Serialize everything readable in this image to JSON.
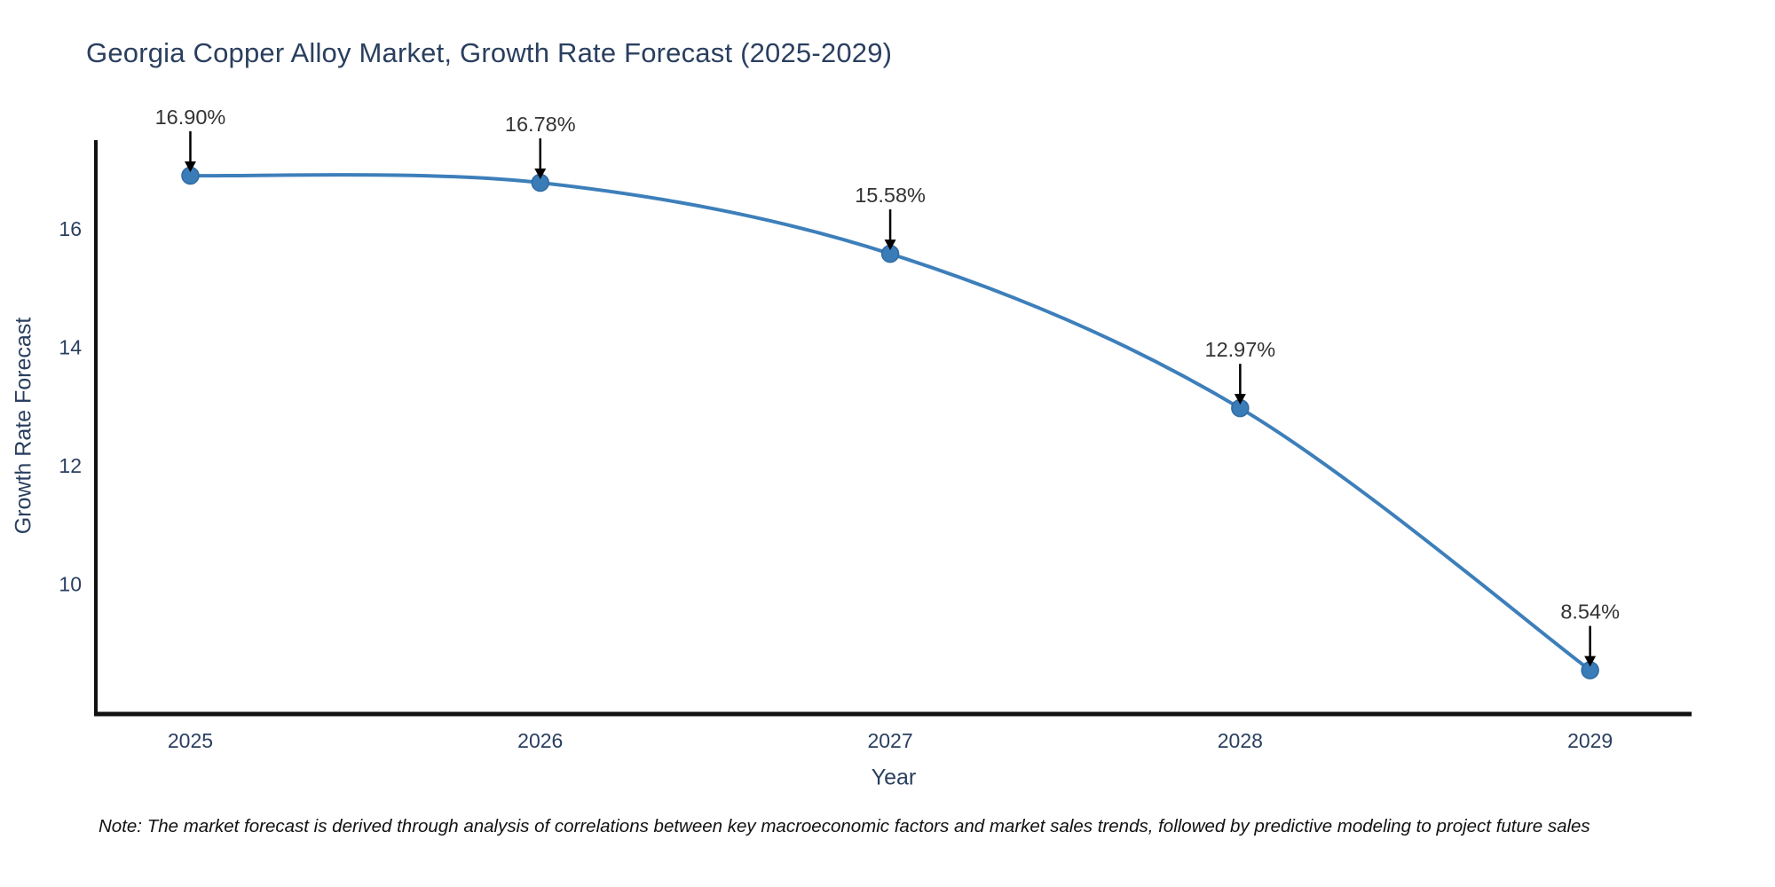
{
  "title": "Georgia Copper Alloy Market, Growth Rate Forecast (2025-2029)",
  "note": "Note: The market forecast is derived through analysis of correlations between key macroeconomic factors and market sales trends, followed by predictive modeling to project future sales",
  "chart_data": {
    "type": "line",
    "title": "Georgia Copper Alloy Market, Growth Rate Forecast (2025-2029)",
    "xlabel": "Year",
    "ylabel": "Growth Rate Forecast",
    "categories": [
      "2025",
      "2026",
      "2027",
      "2028",
      "2029"
    ],
    "x": [
      2025,
      2026,
      2027,
      2028,
      2029
    ],
    "series": [
      {
        "name": "Growth Rate Forecast",
        "values": [
          16.9,
          16.78,
          15.58,
          12.97,
          8.54
        ]
      }
    ],
    "point_labels": [
      "16.90%",
      "16.78%",
      "15.58%",
      "12.97%",
      "8.54%"
    ],
    "y_ticks": [
      10,
      12,
      14,
      16
    ],
    "ylim": [
      7.8,
      17.5
    ],
    "xlim": [
      2024.73,
      2029.29
    ],
    "line_shape": "spline",
    "grid": false,
    "legend": "none",
    "annotations": "value labels with down arrows above each point",
    "colors": {
      "line": "#3d7fba",
      "marker": "#3a7cb8",
      "marker_edge": "#2f6ba3",
      "axis": "#111111",
      "tick_text": "#2a3f5f",
      "annotation_text": "#333333",
      "annotation_arrow": "#000000",
      "background": "#ffffff"
    }
  }
}
